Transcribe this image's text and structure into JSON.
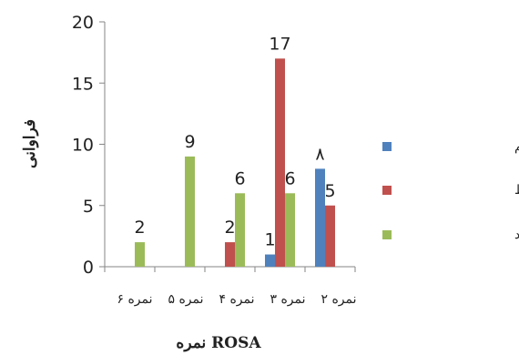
{
  "chart_data": {
    "type": "bar",
    "categories": [
      "نمره ۲",
      "نمره ۳",
      "نمره ۴",
      "نمره ۵",
      "نمره ۶"
    ],
    "series": [
      {
        "name": "بهره وری کم",
        "color": "#4f81bd",
        "values": [
          0,
          0,
          0,
          1,
          8
        ]
      },
      {
        "name": "بهره وری متوسط",
        "color": "#c0504d",
        "values": [
          0,
          0,
          2,
          17,
          5
        ]
      },
      {
        "name": "بهره وری زیاد",
        "color": "#9bbb59",
        "values": [
          2,
          9,
          6,
          6,
          0
        ]
      }
    ],
    "data_labels": [
      {
        "category": "نمره ۲",
        "text": "2"
      },
      {
        "category": "نمره ۳",
        "text": "9"
      },
      {
        "category": "نمره ۴",
        "text": "2"
      },
      {
        "category": "نمره ۴",
        "text": "6"
      },
      {
        "category": "نمره ۵",
        "text": "1"
      },
      {
        "category": "نمره ۵",
        "text": "17"
      },
      {
        "category": "نمره ۵",
        "text": "6"
      },
      {
        "category": "نمره ۶",
        "text": "۸"
      },
      {
        "category": "نمره ۶",
        "text": "5"
      }
    ],
    "xlabel": "نمره ROSA",
    "ylabel": "فراوانی",
    "ylim": [
      0,
      20
    ],
    "yticks": [
      0,
      5,
      10,
      15,
      20
    ],
    "grid": false,
    "legend": "right"
  }
}
